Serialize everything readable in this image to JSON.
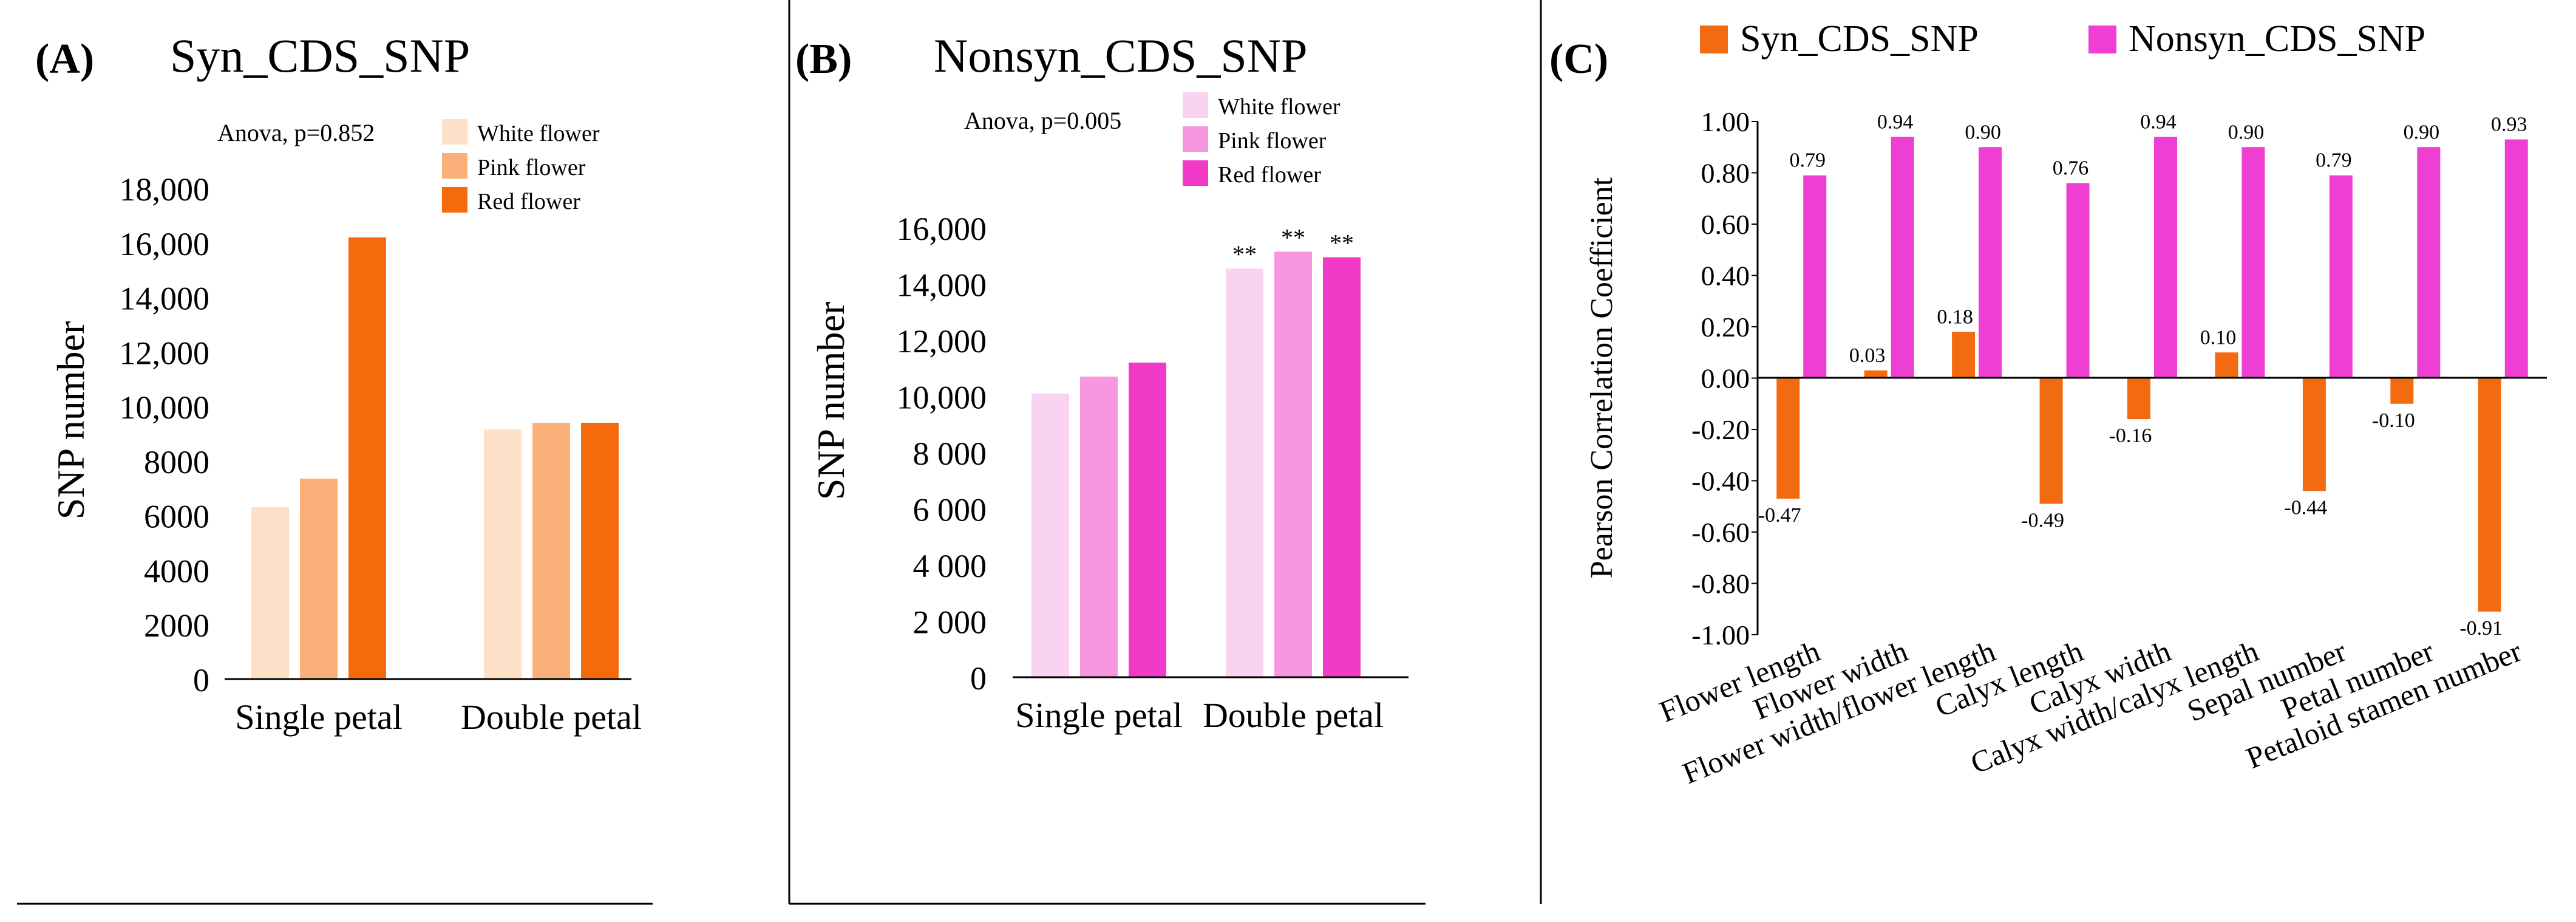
{
  "chart_data": [
    {
      "panel": "(A)",
      "type": "bar",
      "title": "Syn_CDS_SNP",
      "annotation": "Anova, p=0.852",
      "ylabel": "SNP number",
      "xlabel": "",
      "ylim": [
        0,
        18000
      ],
      "yticks": [
        "0",
        "2000",
        "4000",
        "6000",
        "8000",
        "10,000",
        "12,000",
        "14,000",
        "16,000",
        "18,000"
      ],
      "categories": [
        "Single petal",
        "Double petal"
      ],
      "series": [
        {
          "name": "White flower",
          "color": "#fde0c8",
          "values": [
            6300,
            9150
          ],
          "marks": [
            "",
            ""
          ]
        },
        {
          "name": "Pink flower",
          "color": "#fbb07a",
          "values": [
            7350,
            9400
          ],
          "marks": [
            "",
            ""
          ]
        },
        {
          "name": "Red flower",
          "color": "#f56a0c",
          "values": [
            16200,
            9400
          ],
          "marks": [
            "",
            ""
          ]
        }
      ],
      "legend_position": "top-right"
    },
    {
      "panel": "(B)",
      "type": "bar",
      "title": "Nonsyn_CDS_SNP",
      "annotation": "Anova, p=0.005",
      "ylabel": "SNP number",
      "xlabel": "",
      "ylim": [
        0,
        16000
      ],
      "yticks": [
        "0",
        "2 000",
        "4 000",
        "6 000",
        "8 000",
        "10,000",
        "12,000",
        "14,000",
        "16,000"
      ],
      "categories": [
        "Single petal",
        "Double petal"
      ],
      "series": [
        {
          "name": "White flower",
          "color": "#fbd3f2",
          "values": [
            10100,
            14550
          ],
          "marks": [
            "",
            "**"
          ]
        },
        {
          "name": "Pink flower",
          "color": "#f797e0",
          "values": [
            10700,
            15150
          ],
          "marks": [
            "",
            "**"
          ]
        },
        {
          "name": "Red flower",
          "color": "#f23ac8",
          "values": [
            11200,
            14950
          ],
          "marks": [
            "",
            "**"
          ]
        }
      ],
      "legend_position": "top-right"
    },
    {
      "panel": "(C)",
      "type": "bar",
      "title": "",
      "ylabel": "Pearson Correlation Coefficient",
      "xlabel": "",
      "ylim": [
        -1.0,
        1.0
      ],
      "yticks": [
        "-1.00",
        "-0.80",
        "-0.60",
        "-0.40",
        "-0.20",
        "0.00",
        "0.20",
        "0.40",
        "0.60",
        "0.80",
        "1.00"
      ],
      "categories": [
        "Flower length",
        "Flower width",
        "Flower width/flower length",
        "Calyx length",
        "Calyx width",
        "Calyx width/calyx length",
        "Sepal number",
        "Petal number",
        "Petaloid stamen number"
      ],
      "series": [
        {
          "name": "Syn_CDS_SNP",
          "color": "#f36b10",
          "values": [
            -0.47,
            0.03,
            0.18,
            -0.49,
            -0.16,
            0.1,
            -0.44,
            -0.1,
            -0.91
          ],
          "labels": [
            "-0.47",
            "0.03",
            "0.18",
            "-0.49",
            "-0.16",
            "0.10",
            "-0.44",
            "-0.10",
            "-0.91"
          ]
        },
        {
          "name": "Nonsyn_CDS_SNP",
          "color": "#ee3fd2",
          "values": [
            0.79,
            0.94,
            0.9,
            0.76,
            0.94,
            0.9,
            0.79,
            0.9,
            0.93
          ],
          "labels": [
            "0.79",
            "0.94",
            "0.90",
            "0.76",
            "0.94",
            "0.90",
            "0.79",
            "0.90",
            "0.93"
          ]
        }
      ],
      "legend_position": "top"
    }
  ]
}
